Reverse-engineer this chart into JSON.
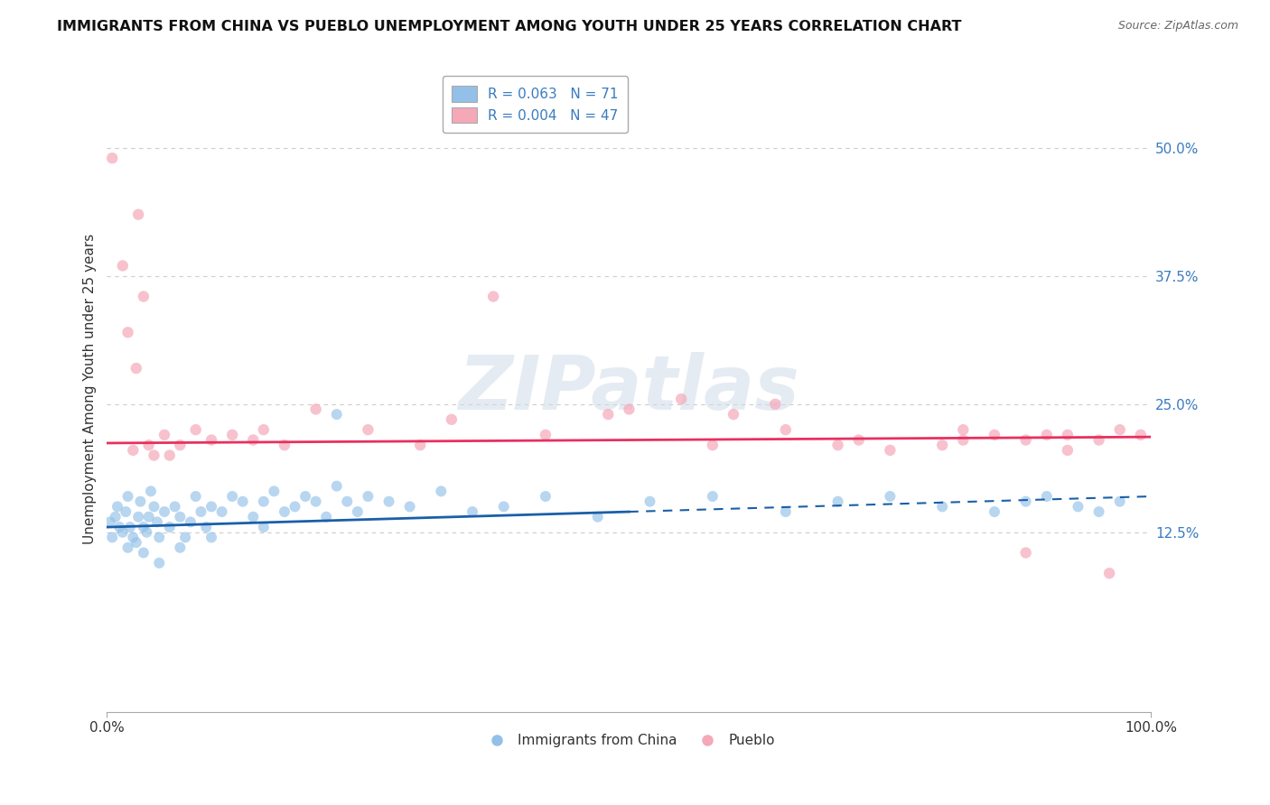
{
  "title": "IMMIGRANTS FROM CHINA VS PUEBLO UNEMPLOYMENT AMONG YOUTH UNDER 25 YEARS CORRELATION CHART",
  "source": "Source: ZipAtlas.com",
  "ylabel": "Unemployment Among Youth under 25 years",
  "xlim": [
    0,
    100
  ],
  "ylim": [
    -5,
    58
  ],
  "ytick_positions": [
    12.5,
    25.0,
    37.5,
    50.0
  ],
  "yticklabels_right": [
    "12.5%",
    "25.0%",
    "37.5%",
    "50.0%"
  ],
  "xtick_positions": [
    0,
    100
  ],
  "xticklabels": [
    "0.0%",
    "100.0%"
  ],
  "legend_labels": [
    "R = 0.063   N = 71",
    "R = 0.004   N = 47"
  ],
  "legend_bottom_labels": [
    "Immigrants from China",
    "Pueblo"
  ],
  "blue_color": "#92c0e8",
  "pink_color": "#f5a8b8",
  "blue_line_color": "#1a5fa8",
  "pink_line_color": "#e83060",
  "tick_label_color": "#3a7bbf",
  "watermark_text": "ZIPatlas",
  "background_color": "#ffffff",
  "grid_color": "#cccccc",
  "blue_line_x": [
    0,
    50,
    100
  ],
  "blue_line_y": [
    13.0,
    14.5,
    16.0
  ],
  "pink_line_x": [
    0,
    100
  ],
  "pink_line_y": [
    21.2,
    21.8
  ],
  "blue_pts_x": [
    0.3,
    0.5,
    0.8,
    1.0,
    1.2,
    1.5,
    1.8,
    2.0,
    2.2,
    2.5,
    2.8,
    3.0,
    3.2,
    3.5,
    3.8,
    4.0,
    4.2,
    4.5,
    4.8,
    5.0,
    5.5,
    6.0,
    6.5,
    7.0,
    7.5,
    8.0,
    8.5,
    9.0,
    9.5,
    10.0,
    11.0,
    12.0,
    13.0,
    14.0,
    15.0,
    16.0,
    17.0,
    18.0,
    19.0,
    20.0,
    21.0,
    22.0,
    23.0,
    24.0,
    25.0,
    27.0,
    29.0,
    32.0,
    35.0,
    38.0,
    42.0,
    47.0,
    52.0,
    58.0,
    65.0,
    70.0,
    75.0,
    80.0,
    85.0,
    88.0,
    90.0,
    93.0,
    95.0,
    97.0,
    2.0,
    3.5,
    5.0,
    7.0,
    10.0,
    15.0,
    22.0
  ],
  "blue_pts_y": [
    13.5,
    12.0,
    14.0,
    15.0,
    13.0,
    12.5,
    14.5,
    16.0,
    13.0,
    12.0,
    11.5,
    14.0,
    15.5,
    13.0,
    12.5,
    14.0,
    16.5,
    15.0,
    13.5,
    12.0,
    14.5,
    13.0,
    15.0,
    14.0,
    12.0,
    13.5,
    16.0,
    14.5,
    13.0,
    15.0,
    14.5,
    16.0,
    15.5,
    14.0,
    15.5,
    16.5,
    14.5,
    15.0,
    16.0,
    15.5,
    14.0,
    17.0,
    15.5,
    14.5,
    16.0,
    15.5,
    15.0,
    16.5,
    14.5,
    15.0,
    16.0,
    14.0,
    15.5,
    16.0,
    14.5,
    15.5,
    16.0,
    15.0,
    14.5,
    15.5,
    16.0,
    15.0,
    14.5,
    15.5,
    11.0,
    10.5,
    9.5,
    11.0,
    12.0,
    13.0,
    24.0
  ],
  "pink_pts_x": [
    0.5,
    1.5,
    2.0,
    2.8,
    3.5,
    4.5,
    5.5,
    7.0,
    8.5,
    10.0,
    12.0,
    14.0,
    17.0,
    20.0,
    25.0,
    30.0,
    33.0,
    37.0,
    42.0,
    48.0,
    55.0,
    60.0,
    65.0,
    70.0,
    75.0,
    80.0,
    82.0,
    85.0,
    88.0,
    90.0,
    92.0,
    95.0,
    97.0,
    99.0,
    2.5,
    4.0,
    6.0,
    3.0,
    15.0,
    50.0,
    58.0,
    64.0,
    72.0,
    82.0,
    88.0,
    92.0,
    96.0
  ],
  "pink_pts_y": [
    49.0,
    38.5,
    32.0,
    28.5,
    35.5,
    20.0,
    22.0,
    21.0,
    22.5,
    21.5,
    22.0,
    21.5,
    21.0,
    24.5,
    22.5,
    21.0,
    23.5,
    35.5,
    22.0,
    24.0,
    25.5,
    24.0,
    22.5,
    21.0,
    20.5,
    21.0,
    21.5,
    22.0,
    21.5,
    22.0,
    20.5,
    21.5,
    22.5,
    22.0,
    20.5,
    21.0,
    20.0,
    43.5,
    22.5,
    24.5,
    21.0,
    25.0,
    21.5,
    22.5,
    10.5,
    22.0,
    8.5
  ]
}
